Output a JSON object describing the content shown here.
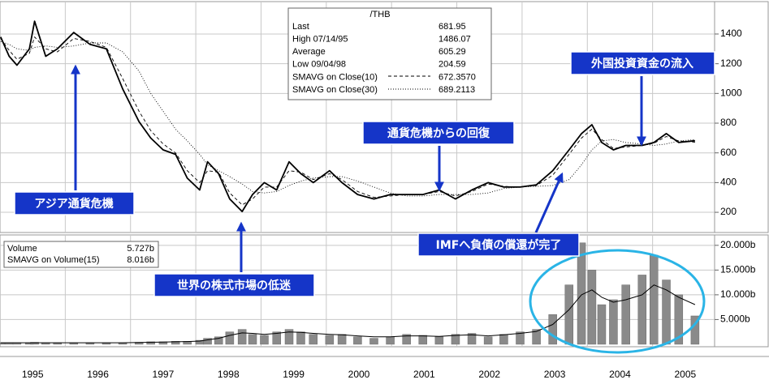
{
  "chart_data": [
    {
      "type": "line",
      "xlim": [
        1995,
        2005.95
      ],
      "ylim": [
        64,
        1618
      ],
      "xticks": [
        1996,
        1997,
        1998,
        1999,
        2000,
        2001,
        2002,
        2003,
        2004,
        2005
      ],
      "yticks": [
        200,
        400,
        600,
        800,
        1000,
        1200,
        1400
      ],
      "grid": true,
      "x": [
        1995.01,
        1995.14,
        1995.26,
        1995.45,
        1995.53,
        1995.7,
        1995.88,
        1996.13,
        1996.38,
        1996.63,
        1996.88,
        1997.13,
        1997.31,
        1997.5,
        1997.69,
        1997.87,
        1998.06,
        1998.18,
        1998.35,
        1998.52,
        1998.71,
        1998.87,
        1999.05,
        1999.24,
        1999.43,
        1999.61,
        1999.8,
        2000.05,
        2000.24,
        2000.48,
        2000.73,
        2000.98,
        2001.23,
        2001.48,
        2001.73,
        2001.98,
        2002.23,
        2002.48,
        2002.72,
        2002.97,
        2003.22,
        2003.47,
        2003.72,
        2003.91,
        2004.07,
        2004.22,
        2004.4,
        2004.59,
        2004.84,
        2005.02,
        2005.21,
        2005.4,
        2005.65
      ],
      "series": [
        {
          "color": "#000000",
          "style": "solid",
          "width": 1.8,
          "values": [
            1380,
            1250,
            1190,
            1300,
            1486,
            1250,
            1300,
            1410,
            1330,
            1300,
            1030,
            810,
            700,
            620,
            590,
            430,
            350,
            540,
            460,
            290,
            205,
            320,
            400,
            350,
            540,
            460,
            400,
            480,
            400,
            320,
            290,
            320,
            320,
            320,
            350,
            290,
            350,
            400,
            370,
            370,
            385,
            480,
            620,
            730,
            790,
            670,
            620,
            650,
            650,
            670,
            730,
            670,
            682
          ]
        },
        {
          "color": "#000000",
          "style": "dashed",
          "width": 0.9,
          "values": [
            1370,
            1290,
            1230,
            1270,
            1380,
            1300,
            1280,
            1370,
            1350,
            1310,
            1100,
            880,
            750,
            660,
            600,
            480,
            400,
            480,
            470,
            330,
            250,
            290,
            370,
            370,
            480,
            470,
            420,
            460,
            420,
            340,
            300,
            310,
            320,
            320,
            340,
            310,
            340,
            390,
            375,
            370,
            380,
            450,
            590,
            700,
            760,
            690,
            630,
            640,
            650,
            665,
            710,
            680,
            672
          ]
        },
        {
          "color": "#000000",
          "style": "dotted",
          "width": 0.9,
          "values": [
            1350,
            1330,
            1300,
            1290,
            1310,
            1320,
            1310,
            1320,
            1340,
            1340,
            1280,
            1150,
            1000,
            880,
            760,
            680,
            590,
            520,
            480,
            440,
            390,
            340,
            330,
            340,
            380,
            410,
            430,
            440,
            440,
            410,
            370,
            330,
            310,
            310,
            320,
            320,
            320,
            330,
            360,
            370,
            375,
            380,
            420,
            520,
            620,
            680,
            690,
            670,
            660,
            650,
            660,
            680,
            689
          ]
        }
      ],
      "info_box": {
        "title": "/THB",
        "rows": [
          [
            "Last",
            "681.95"
          ],
          [
            "High  07/14/95",
            "1486.07"
          ],
          [
            "Average",
            "605.29"
          ],
          [
            "Low  09/04/98",
            "204.59"
          ],
          [
            "SMAVG on Close(10)",
            "672.3570"
          ],
          [
            "SMAVG on Close(30)",
            "689.2113"
          ]
        ]
      }
    },
    {
      "type": "bar",
      "xlim": [
        1995,
        2005.95
      ],
      "ylim": [
        -0.5,
        22.1
      ],
      "xticks": [
        1996,
        1997,
        1998,
        1999,
        2000,
        2001,
        2002,
        2003,
        2004,
        2005
      ],
      "yticks": [
        {
          "value": 5,
          "label": "5.000b"
        },
        {
          "value": 10,
          "label": "10.000b"
        },
        {
          "value": 15,
          "label": "15.000b"
        },
        {
          "value": 20,
          "label": "20.000b"
        }
      ],
      "grid": true,
      "x_labels": [
        1995,
        1996,
        1997,
        1998,
        1999,
        2000,
        2001,
        2002,
        2003,
        2004,
        2005
      ],
      "x": [
        1995.01,
        1995.14,
        1995.26,
        1995.45,
        1995.53,
        1995.7,
        1995.88,
        1996.13,
        1996.38,
        1996.63,
        1996.88,
        1997.13,
        1997.31,
        1997.5,
        1997.69,
        1997.87,
        1998.06,
        1998.18,
        1998.35,
        1998.52,
        1998.71,
        1998.87,
        1999.05,
        1999.24,
        1999.43,
        1999.61,
        1999.8,
        2000.05,
        2000.24,
        2000.48,
        2000.73,
        2000.98,
        2001.23,
        2001.48,
        2001.73,
        2001.98,
        2002.23,
        2002.48,
        2002.72,
        2002.97,
        2003.22,
        2003.47,
        2003.72,
        2003.91,
        2004.07,
        2004.22,
        2004.4,
        2004.59,
        2004.84,
        2005.02,
        2005.21,
        2005.4,
        2005.65
      ],
      "series": [
        {
          "color": "#8a8a8a",
          "values": [
            0.3,
            0.3,
            0.3,
            0.3,
            0.4,
            0.3,
            0.3,
            0.3,
            0.3,
            0.3,
            0.3,
            0.4,
            0.5,
            0.5,
            0.6,
            0.6,
            0.8,
            1.2,
            1.5,
            2.5,
            3.0,
            2.0,
            1.8,
            2.5,
            3.0,
            2.5,
            2.0,
            1.8,
            2.0,
            1.5,
            1.2,
            1.5,
            2.0,
            1.8,
            1.5,
            2.0,
            2.2,
            1.5,
            2.0,
            2.5,
            3.0,
            6.0,
            12.0,
            20.5,
            15.0,
            8.0,
            9.0,
            12.0,
            14.0,
            18.0,
            13.0,
            10.0,
            5.727
          ]
        },
        {
          "type": "line",
          "color": "#000000",
          "values": [
            0.3,
            0.3,
            0.3,
            0.3,
            0.3,
            0.3,
            0.3,
            0.3,
            0.3,
            0.3,
            0.3,
            0.35,
            0.4,
            0.45,
            0.5,
            0.55,
            0.65,
            0.9,
            1.2,
            1.8,
            2.3,
            2.2,
            2.0,
            2.2,
            2.5,
            2.4,
            2.2,
            2.0,
            1.9,
            1.7,
            1.5,
            1.5,
            1.7,
            1.7,
            1.6,
            1.8,
            1.9,
            1.7,
            1.9,
            2.2,
            2.6,
            4.0,
            7.0,
            10.0,
            11.0,
            9.5,
            8.5,
            9.0,
            10.0,
            12.0,
            11.0,
            9.5,
            8.016
          ]
        }
      ],
      "legend_box": {
        "rows": [
          [
            "Volume",
            "5.727b"
          ],
          [
            "SMAVG on Volume(15)",
            "8.016b"
          ]
        ]
      }
    }
  ],
  "annotations": [
    {
      "text": "アジア通貨危機"
    },
    {
      "text": "世界の株式市場の低迷"
    },
    {
      "text": "通貨危機からの回復"
    },
    {
      "text": "外国投資資金の流入"
    },
    {
      "text": "IMFへ負債の償還が完了"
    }
  ]
}
